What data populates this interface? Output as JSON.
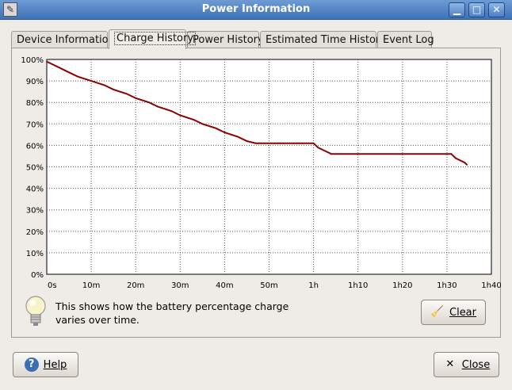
{
  "window": {
    "title": "Power Information"
  },
  "window_controls": {
    "minimize_icon": "minimize-icon",
    "maximize_icon": "maximize-icon",
    "close_icon": "close-icon"
  },
  "tabs": [
    {
      "label": "Device Information",
      "active": false
    },
    {
      "label": "Charge History",
      "active": true
    },
    {
      "label": "Power History",
      "active": false
    },
    {
      "label": "Estimated Time History",
      "active": false
    },
    {
      "label": "Event Log",
      "active": false
    }
  ],
  "hint": {
    "text": "This shows how the battery percentage charge varies over time.",
    "icon": "lightbulb-icon"
  },
  "buttons": {
    "clear": "Clear",
    "help": "Help",
    "close": "Close"
  },
  "chart_data": {
    "type": "line",
    "y_ticks": [
      "100%",
      "90%",
      "80%",
      "70%",
      "60%",
      "50%",
      "40%",
      "30%",
      "20%",
      "10%",
      "0%"
    ],
    "x_ticks": [
      "0s",
      "10m",
      "20m",
      "30m",
      "40m",
      "50m",
      "1h",
      "1h10",
      "1h20",
      "1h30",
      "1h40"
    ],
    "ylim": [
      0,
      100
    ],
    "xlim_minutes": [
      0,
      100
    ],
    "grid": true,
    "line_color": "#8b0000",
    "series": [
      {
        "points": [
          [
            0,
            99
          ],
          [
            1,
            98
          ],
          [
            3,
            96
          ],
          [
            5,
            94
          ],
          [
            7,
            92
          ],
          [
            10,
            90
          ],
          [
            13,
            88
          ],
          [
            15,
            86
          ],
          [
            18,
            84
          ],
          [
            20,
            82
          ],
          [
            23,
            80
          ],
          [
            25,
            78
          ],
          [
            28,
            76
          ],
          [
            30,
            74
          ],
          [
            33,
            72
          ],
          [
            35,
            70
          ],
          [
            38,
            68
          ],
          [
            40,
            66
          ],
          [
            43,
            64
          ],
          [
            45,
            62
          ],
          [
            47,
            61
          ],
          [
            60,
            61
          ],
          [
            61,
            59
          ],
          [
            63,
            57
          ],
          [
            64,
            56
          ],
          [
            91,
            56
          ],
          [
            92,
            54
          ],
          [
            93,
            53
          ],
          [
            94,
            52
          ],
          [
            94.5,
            51
          ]
        ]
      }
    ]
  }
}
